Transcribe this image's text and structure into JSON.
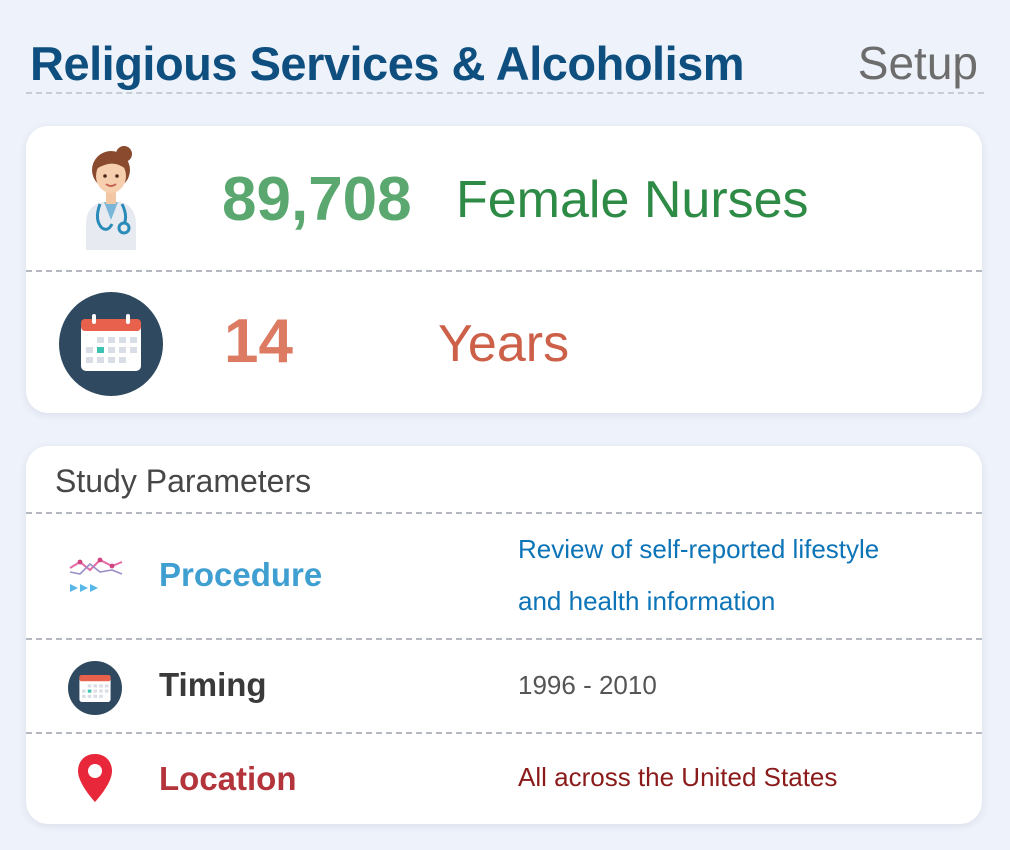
{
  "header": {
    "title": "Religious Services & Alcoholism",
    "setup_label": "Setup"
  },
  "summary": {
    "participants": {
      "count": "89,708",
      "label": "Female Nurses",
      "icon": "nurse-icon",
      "color": "#5aa86f"
    },
    "duration": {
      "count": "14",
      "label": "Years",
      "icon": "calendar-icon",
      "color": "#dc7a62"
    }
  },
  "study_parameters": {
    "heading": "Study Parameters",
    "items": [
      {
        "name": "Procedure",
        "value_line1": "Review of self-reported lifestyle",
        "value_line2": "and health information",
        "icon": "trend-chart-icon",
        "name_color": "#3f9fd0",
        "value_color": "#0e74b8"
      },
      {
        "name": "Timing",
        "value": "1996 - 2010",
        "icon": "calendar-icon",
        "name_color": "#3a3a3a",
        "value_color": "#555555"
      },
      {
        "name": "Location",
        "value": "All across the United States",
        "icon": "map-pin-icon",
        "name_color": "#b3343a",
        "value_color": "#8b1a1a"
      }
    ]
  },
  "colors": {
    "background": "#eef2fa",
    "title": "#0e4f80",
    "card": "#ffffff"
  }
}
